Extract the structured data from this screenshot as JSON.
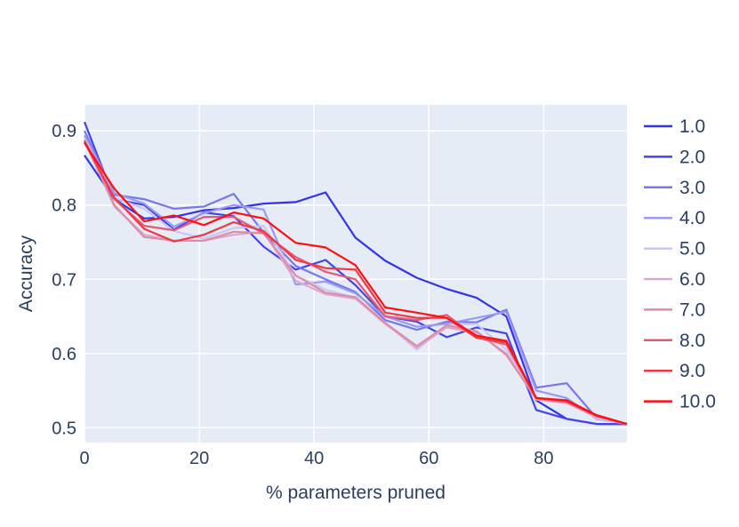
{
  "chart_data": {
    "type": "line",
    "xlabel": "% parameters pruned",
    "ylabel": "Accuracy",
    "xlim": [
      0,
      94.5
    ],
    "ylim": [
      0.48,
      0.935
    ],
    "xticks": [
      0,
      20,
      40,
      60,
      80
    ],
    "xtick_labels": [
      "0",
      "20",
      "40",
      "60",
      "80"
    ],
    "yticks": [
      0.5,
      0.6,
      0.7,
      0.8,
      0.9
    ],
    "ytick_labels": [
      "0.5",
      "0.6",
      "0.7",
      "0.8",
      "0.9"
    ],
    "grid": true,
    "legend_position": "right",
    "plot_background": "#e5ecf6",
    "x": [
      0,
      5.2,
      10.4,
      15.6,
      20.8,
      26.0,
      31.2,
      36.8,
      42.0,
      47.2,
      52.4,
      57.9,
      63.1,
      68.3,
      73.5,
      78.7,
      84.0,
      89.2,
      94.5
    ],
    "series": [
      {
        "name": "1.0",
        "color": "#3333ee",
        "values": [
          0.867,
          0.808,
          0.782,
          0.784,
          0.793,
          0.796,
          0.802,
          0.804,
          0.817,
          0.756,
          0.725,
          0.702,
          0.687,
          0.675,
          0.65,
          0.537,
          0.512,
          0.505,
          0.505
        ]
      },
      {
        "name": "2.0",
        "color": "#4444e8",
        "values": [
          0.912,
          0.808,
          0.8,
          0.767,
          0.79,
          0.785,
          0.744,
          0.713,
          0.726,
          0.692,
          0.65,
          0.643,
          0.622,
          0.635,
          0.627,
          0.524,
          0.512,
          0.505,
          0.505
        ]
      },
      {
        "name": "3.0",
        "color": "#7777ee",
        "values": [
          0.9,
          0.814,
          0.808,
          0.795,
          0.798,
          0.815,
          0.763,
          0.718,
          0.7,
          0.683,
          0.645,
          0.632,
          0.643,
          0.642,
          0.659,
          0.554,
          0.56,
          0.513,
          0.505
        ]
      },
      {
        "name": "4.0",
        "color": "#9a9af2",
        "values": [
          0.894,
          0.816,
          0.802,
          0.771,
          0.789,
          0.8,
          0.794,
          0.693,
          0.697,
          0.681,
          0.65,
          0.636,
          0.64,
          0.648,
          0.656,
          0.55,
          0.54,
          0.512,
          0.505
        ]
      },
      {
        "name": "5.0",
        "color": "#c8c8f5",
        "values": [
          0.89,
          0.81,
          0.795,
          0.765,
          0.755,
          0.769,
          0.772,
          0.705,
          0.686,
          0.675,
          0.642,
          0.605,
          0.638,
          0.64,
          0.605,
          0.54,
          0.535,
          0.513,
          0.505
        ]
      },
      {
        "name": "6.0",
        "color": "#d8a8d0",
        "values": [
          0.888,
          0.798,
          0.76,
          0.752,
          0.752,
          0.76,
          0.764,
          0.698,
          0.68,
          0.674,
          0.64,
          0.608,
          0.635,
          0.628,
          0.6,
          0.538,
          0.533,
          0.515,
          0.505
        ]
      },
      {
        "name": "7.0",
        "color": "#e28aa5",
        "values": [
          0.886,
          0.8,
          0.757,
          0.752,
          0.752,
          0.764,
          0.762,
          0.705,
          0.682,
          0.676,
          0.641,
          0.61,
          0.638,
          0.63,
          0.598,
          0.539,
          0.534,
          0.515,
          0.505
        ]
      },
      {
        "name": "8.0",
        "color": "#e45a75",
        "values": [
          0.887,
          0.808,
          0.772,
          0.766,
          0.784,
          0.784,
          0.762,
          0.73,
          0.71,
          0.7,
          0.65,
          0.645,
          0.652,
          0.622,
          0.612,
          0.54,
          0.535,
          0.516,
          0.505
        ]
      },
      {
        "name": "9.0",
        "color": "#ee3845",
        "values": [
          0.885,
          0.81,
          0.768,
          0.751,
          0.76,
          0.777,
          0.765,
          0.726,
          0.715,
          0.713,
          0.655,
          0.648,
          0.648,
          0.621,
          0.615,
          0.54,
          0.536,
          0.516,
          0.505
        ]
      },
      {
        "name": "10.0",
        "color": "#ff1010",
        "values": [
          0.884,
          0.822,
          0.778,
          0.786,
          0.773,
          0.79,
          0.782,
          0.749,
          0.743,
          0.719,
          0.662,
          0.655,
          0.648,
          0.624,
          0.617,
          0.54,
          0.537,
          0.517,
          0.505
        ]
      }
    ]
  }
}
